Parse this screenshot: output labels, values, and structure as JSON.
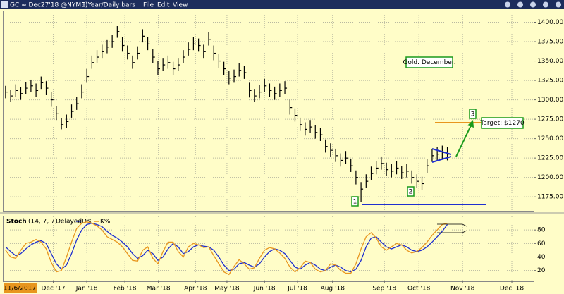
{
  "toolbar": {
    "symbol": "GC ∞ Dec27'18 @NYME)",
    "interval": "1 Year/Daily bars",
    "menus": [
      "File",
      "Edit",
      "View"
    ]
  },
  "chart_data": [
    {
      "type": "ohlc",
      "annotations": [
        "Gold. December.",
        "Target: $1270",
        "1",
        "2",
        "3"
      ],
      "ylim": [
        1157,
        1415
      ],
      "yticks": [
        {
          "value": 1175,
          "label": "1175.00"
        },
        {
          "value": 1200,
          "label": "1200.00"
        },
        {
          "value": 1225,
          "label": "1225.00"
        },
        {
          "value": 1250,
          "label": "1250.00"
        },
        {
          "value": 1275,
          "label": "1275.00"
        },
        {
          "value": 1300,
          "label": "1300.00"
        },
        {
          "value": 1325,
          "label": "1325.00"
        },
        {
          "value": 1350,
          "label": "1350.00"
        },
        {
          "value": 1375,
          "label": "1375.00"
        },
        {
          "value": 1400,
          "label": "1400.00"
        }
      ],
      "xlim": [
        -0.4,
        104
      ],
      "xticks": [
        {
          "value": 2.8,
          "label": "11/6/2017"
        },
        {
          "value": 9.4,
          "label": "Dec '17"
        },
        {
          "value": 16,
          "label": "Jan '18"
        },
        {
          "value": 23.5,
          "label": "Feb '18"
        },
        {
          "value": 30.1,
          "label": "Mar '18"
        },
        {
          "value": 37.4,
          "label": "Apr '18"
        },
        {
          "value": 43.6,
          "label": "May '18"
        },
        {
          "value": 51,
          "label": "Jun '18"
        },
        {
          "value": 57.5,
          "label": "Jul '18"
        },
        {
          "value": 64.4,
          "label": "Aug '18"
        },
        {
          "value": 74.6,
          "label": "Sep '18"
        },
        {
          "value": 81.4,
          "label": "Oct '18"
        },
        {
          "value": 90,
          "label": "Nov '18"
        },
        {
          "value": 99.7,
          "label": "Dec '18"
        }
      ],
      "color": "#000000",
      "grid": true,
      "high": [
        1318,
        1313,
        1320,
        1316,
        1323,
        1326,
        1321,
        1330,
        1324,
        1310,
        1292,
        1276,
        1281,
        1294,
        1304,
        1320,
        1340,
        1357,
        1364,
        1371,
        1377,
        1384,
        1395,
        1381,
        1370,
        1357,
        1369,
        1391,
        1381,
        1365,
        1350,
        1354,
        1357,
        1349,
        1354,
        1364,
        1374,
        1381,
        1379,
        1371,
        1387,
        1370,
        1359,
        1349,
        1337,
        1339,
        1347,
        1344,
        1322,
        1314,
        1319,
        1327,
        1321,
        1317,
        1321,
        1324,
        1300,
        1289,
        1277,
        1271,
        1274,
        1267,
        1264,
        1249,
        1244,
        1237,
        1231,
        1234,
        1224,
        1209,
        1194,
        1204,
        1214,
        1221,
        1227,
        1219,
        1217,
        1221,
        1215,
        1217,
        1209,
        1204,
        1201,
        1224,
        1237,
        1239,
        1241,
        1239
      ],
      "low": [
        1302,
        1297,
        1304,
        1300,
        1307,
        1310,
        1304,
        1314,
        1306,
        1291,
        1274,
        1262,
        1264,
        1277,
        1287,
        1302,
        1322,
        1340,
        1347,
        1354,
        1360,
        1367,
        1380,
        1362,
        1352,
        1340,
        1352,
        1374,
        1364,
        1347,
        1332,
        1337,
        1340,
        1332,
        1337,
        1347,
        1357,
        1364,
        1362,
        1354,
        1370,
        1351,
        1341,
        1332,
        1320,
        1322,
        1330,
        1327,
        1303,
        1297,
        1302,
        1310,
        1304,
        1300,
        1304,
        1307,
        1281,
        1272,
        1260,
        1254,
        1257,
        1250,
        1247,
        1232,
        1227,
        1220,
        1214,
        1217,
        1207,
        1191,
        1168,
        1187,
        1197,
        1204,
        1210,
        1202,
        1200,
        1204,
        1198,
        1200,
        1192,
        1187,
        1184,
        1206,
        1220,
        1222,
        1224,
        1222
      ],
      "close": [
        1310,
        1305,
        1312,
        1308,
        1315,
        1318,
        1312,
        1322,
        1315,
        1300,
        1282,
        1268,
        1272,
        1285,
        1295,
        1310,
        1330,
        1348,
        1355,
        1362,
        1368,
        1375,
        1388,
        1370,
        1360,
        1348,
        1360,
        1382,
        1372,
        1355,
        1340,
        1345,
        1348,
        1340,
        1345,
        1355,
        1365,
        1372,
        1370,
        1362,
        1378,
        1360,
        1350,
        1340,
        1328,
        1330,
        1338,
        1335,
        1312,
        1305,
        1310,
        1318,
        1312,
        1308,
        1312,
        1315,
        1290,
        1280,
        1268,
        1262,
        1265,
        1258,
        1255,
        1240,
        1235,
        1228,
        1222,
        1225,
        1215,
        1200,
        1185,
        1195,
        1205,
        1212,
        1218,
        1210,
        1208,
        1212,
        1206,
        1208,
        1200,
        1195,
        1192,
        1215,
        1228,
        1230,
        1232,
        1230
      ]
    },
    {
      "type": "line",
      "title": "Stoch",
      "params": "(14, 7, 7)",
      "status": "Delayed",
      "ylim": [
        4,
        100
      ],
      "yticks": [
        20,
        40,
        60,
        80
      ],
      "grid": true,
      "series": [
        {
          "name": "D%",
          "color": "#1f2fd0",
          "values": [
            55,
            48,
            42,
            45,
            52,
            58,
            62,
            64,
            60,
            45,
            30,
            22,
            28,
            45,
            65,
            80,
            88,
            90,
            88,
            85,
            78,
            72,
            68,
            62,
            55,
            45,
            38,
            42,
            50,
            45,
            35,
            40,
            52,
            60,
            55,
            45,
            48,
            55,
            58,
            56,
            55,
            50,
            40,
            28,
            20,
            22,
            30,
            32,
            28,
            25,
            30,
            40,
            48,
            52,
            50,
            45,
            35,
            25,
            22,
            28,
            32,
            28,
            22,
            20,
            25,
            28,
            25,
            20,
            18,
            22,
            35,
            55,
            68,
            70,
            62,
            55,
            52,
            55,
            58,
            55,
            50,
            48,
            50,
            55,
            62,
            70,
            78,
            88
          ]
        },
        {
          "name": "K%",
          "color": "#e8961e",
          "values": [
            50,
            40,
            38,
            50,
            60,
            62,
            66,
            62,
            52,
            32,
            18,
            20,
            40,
            62,
            82,
            90,
            92,
            90,
            86,
            80,
            70,
            66,
            62,
            55,
            45,
            35,
            34,
            50,
            55,
            38,
            30,
            48,
            62,
            62,
            48,
            40,
            55,
            60,
            58,
            54,
            55,
            42,
            30,
            18,
            14,
            26,
            36,
            30,
            22,
            24,
            38,
            50,
            54,
            52,
            46,
            38,
            25,
            18,
            24,
            34,
            32,
            22,
            18,
            20,
            30,
            28,
            20,
            16,
            16,
            30,
            52,
            70,
            76,
            68,
            55,
            50,
            55,
            60,
            58,
            50,
            46,
            48,
            54,
            62,
            72,
            80,
            88,
            90
          ]
        }
      ]
    }
  ]
}
